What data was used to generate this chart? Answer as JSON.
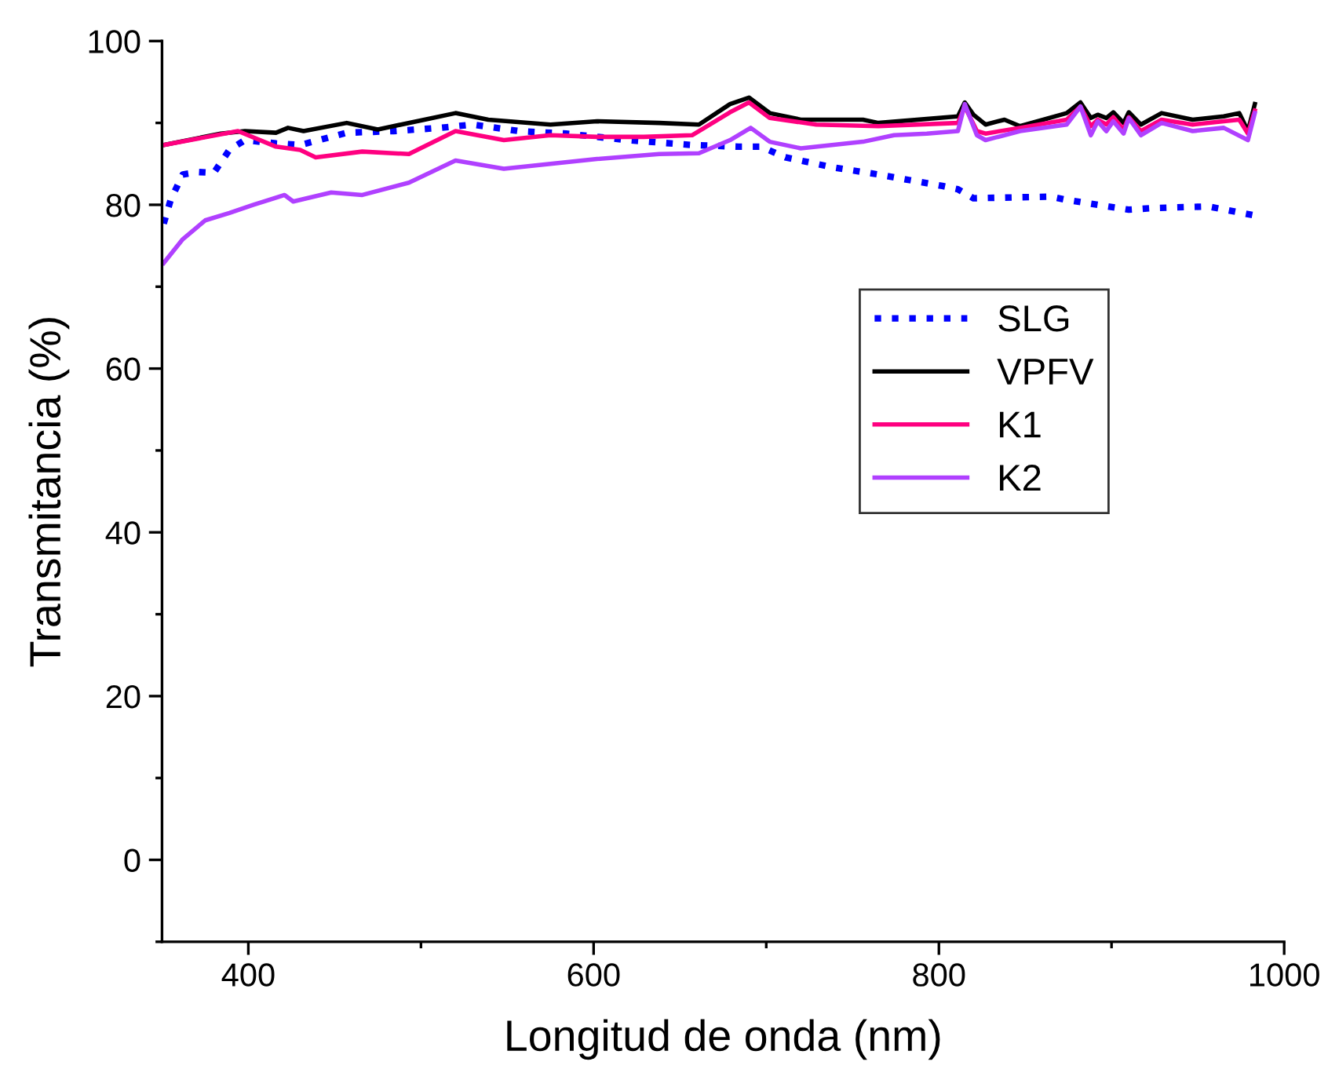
{
  "chart_data": {
    "type": "line",
    "xlabel": "Longitud de onda (nm)",
    "ylabel": "Transmitancia (%)",
    "xlim": [
      350,
      1000
    ],
    "ylim": [
      -10,
      100
    ],
    "xticks": [
      400,
      600,
      800,
      1000
    ],
    "yticks": [
      0,
      20,
      40,
      60,
      80,
      100
    ],
    "grid": false,
    "legend": "right",
    "marker": "none",
    "series": [
      {
        "name": "SLG",
        "color": "#0000ff",
        "line_style": "dotted",
        "x": [
          351,
          355,
          362,
          371,
          380,
          389,
          398,
          416,
          430,
          457,
          484,
          511,
          530,
          557,
          584,
          620,
          657,
          684,
          697,
          711,
          738,
          765,
          802,
          811,
          820,
          865,
          874,
          910,
          924,
          956,
          983
        ],
        "values": [
          77.7,
          80.6,
          83.7,
          84,
          83.9,
          86.7,
          87.9,
          87.5,
          87.3,
          88.8,
          89,
          89.4,
          89.8,
          89,
          88.7,
          87.9,
          87.3,
          87.1,
          87.1,
          85.8,
          84.6,
          83.7,
          82.3,
          81.9,
          80.8,
          81,
          80.6,
          79.4,
          79.6,
          79.8,
          78.7
        ]
      },
      {
        "name": "VPFV",
        "color": "#000000",
        "line_style": "solid",
        "x": [
          351,
          384,
          398,
          416,
          423,
          432,
          457,
          475,
          502,
          520,
          539,
          575,
          602,
          638,
          661,
          679,
          690,
          702,
          720,
          756,
          765,
          811,
          815,
          820,
          827,
          838,
          847,
          874,
          882,
          888,
          892,
          897,
          901,
          907,
          910,
          917,
          929,
          947,
          965,
          974,
          979,
          983
        ],
        "values": [
          87.3,
          88.7,
          89,
          88.8,
          89.4,
          89,
          90,
          89.2,
          90.4,
          91.2,
          90.4,
          89.8,
          90.2,
          90,
          89.8,
          92.3,
          93.1,
          91.2,
          90.4,
          90.4,
          90,
          90.8,
          92.5,
          91,
          89.8,
          90.4,
          89.6,
          91.2,
          92.5,
          90.6,
          91,
          90.6,
          91.3,
          90,
          91.3,
          89.8,
          91.2,
          90.4,
          90.8,
          91.2,
          89,
          92.3
        ]
      },
      {
        "name": "K1",
        "color": "#ff0080",
        "line_style": "solid",
        "x": [
          351,
          394,
          416,
          430,
          439,
          466,
          493,
          520,
          548,
          575,
          602,
          629,
          657,
          679,
          690,
          702,
          729,
          765,
          811,
          815,
          822,
          827,
          847,
          874,
          882,
          888,
          892,
          897,
          901,
          907,
          910,
          917,
          929,
          947,
          965,
          974,
          979,
          983
        ],
        "values": [
          87.3,
          89,
          87.1,
          86.7,
          85.8,
          86.5,
          86.2,
          89,
          87.9,
          88.5,
          88.3,
          88.3,
          88.5,
          91.3,
          92.5,
          90.6,
          89.8,
          89.6,
          90,
          92,
          89,
          88.7,
          89.4,
          90.4,
          92,
          89.6,
          90.4,
          89.8,
          90.7,
          89.2,
          90.7,
          89,
          90.4,
          89.8,
          90.2,
          90.4,
          88.7,
          91.5
        ]
      },
      {
        "name": "K2",
        "color": "#b040ff",
        "line_style": "solid",
        "x": [
          351,
          362,
          375,
          389,
          403,
          421,
          426,
          448,
          466,
          493,
          520,
          548,
          575,
          602,
          638,
          661,
          679,
          691,
          702,
          720,
          756,
          774,
          793,
          811,
          815,
          822,
          827,
          847,
          874,
          882,
          888,
          892,
          897,
          901,
          907,
          910,
          917,
          929,
          947,
          965,
          979,
          983
        ],
        "values": [
          72.9,
          75.8,
          78.1,
          79,
          80,
          81.2,
          80.4,
          81.5,
          81.2,
          82.7,
          85.4,
          84.4,
          85,
          85.6,
          86.2,
          86.3,
          87.9,
          89.4,
          87.7,
          86.9,
          87.7,
          88.5,
          88.7,
          89,
          92.3,
          88.5,
          87.9,
          89,
          89.8,
          92,
          88.5,
          90.2,
          89,
          90.2,
          88.7,
          90.6,
          88.5,
          90,
          89,
          89.4,
          87.9,
          91.2
        ]
      }
    ]
  }
}
